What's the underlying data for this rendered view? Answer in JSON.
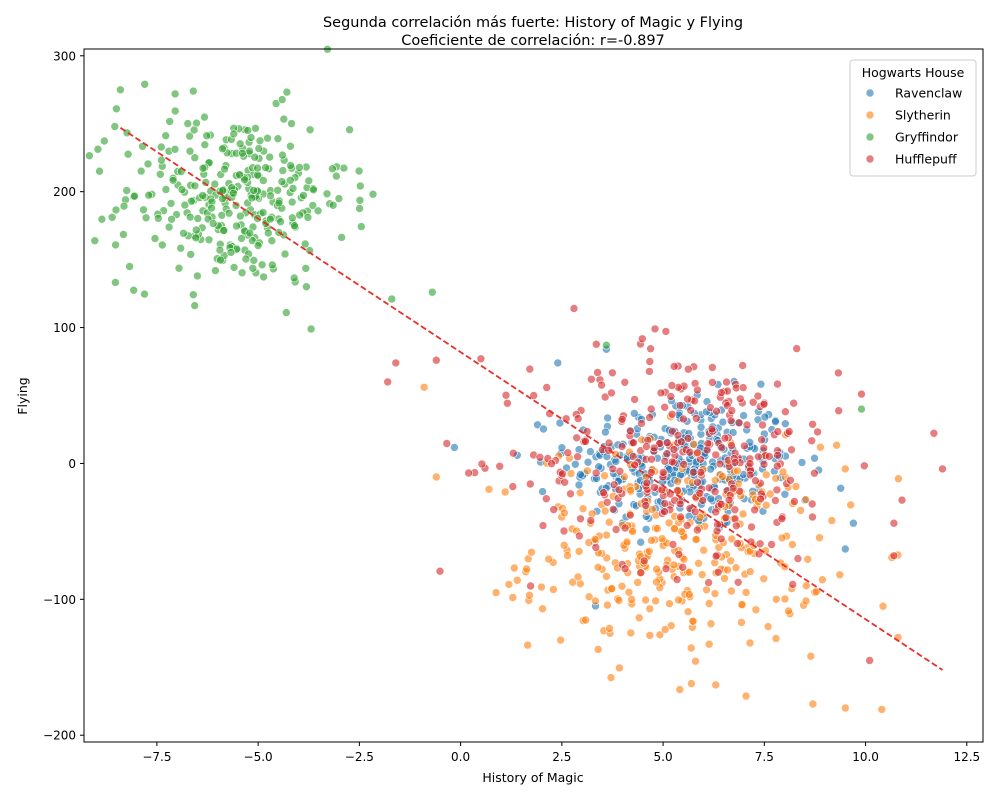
{
  "chart_data": {
    "type": "scatter",
    "title": "Segunda correlación más fuerte: History of Magic y Flying",
    "subtitle": "Coeficiente de correlación: r=-0.897",
    "xlabel": "History of Magic",
    "ylabel": "Flying",
    "xlim": [
      -9.3,
      12.9
    ],
    "ylim": [
      -205,
      305
    ],
    "xticks": [
      -7.5,
      -5.0,
      -2.5,
      0.0,
      2.5,
      5.0,
      7.5,
      10.0,
      12.5
    ],
    "xtick_labels": [
      "−7.5",
      "−5.0",
      "−2.5",
      "0.0",
      "2.5",
      "5.0",
      "7.5",
      "10.0",
      "12.5"
    ],
    "yticks": [
      -200,
      -100,
      0,
      100,
      200,
      300
    ],
    "ytick_labels": [
      "−200",
      "−100",
      "0",
      "100",
      "200",
      "300"
    ],
    "grid": false,
    "legend": {
      "title": "Hogwarts House",
      "placement": "top-right"
    },
    "series": [
      {
        "name": "Ravenclaw",
        "color": "#1f77b4",
        "center": [
          5.5,
          0
        ],
        "spread": [
          1.4,
          25
        ],
        "count": 320,
        "extra_points": [
          [
            2.4,
            74
          ],
          [
            3.6,
            84
          ],
          [
            9.7,
            -44
          ],
          [
            9.5,
            -63
          ],
          [
            1.4,
            6
          ],
          [
            8.5,
            -27
          ]
        ]
      },
      {
        "name": "Slytherin",
        "color": "#ff7f0e",
        "center": [
          5.4,
          -62
        ],
        "spread": [
          1.8,
          38
        ],
        "count": 320,
        "extra_points": [
          [
            -0.9,
            56
          ],
          [
            -0.6,
            -10
          ],
          [
            0.7,
            -19
          ],
          [
            1.1,
            -21
          ],
          [
            10.4,
            -181
          ],
          [
            9.5,
            -180
          ],
          [
            8.7,
            -177
          ],
          [
            10.8,
            -128
          ],
          [
            9.5,
            -4
          ],
          [
            5.7,
            -162
          ],
          [
            6.3,
            -163
          ],
          [
            1.4,
            -86
          ],
          [
            1.7,
            -97
          ]
        ]
      },
      {
        "name": "Gryffindor",
        "color": "#2ca02c",
        "center": [
          -5.6,
          195
        ],
        "spread": [
          1.4,
          32
        ],
        "count": 320,
        "extra_points": [
          [
            -8.4,
            275
          ],
          [
            -7.8,
            279
          ],
          [
            -6.6,
            274
          ],
          [
            -0.7,
            126
          ],
          [
            -1.7,
            121
          ],
          [
            9.9,
            40
          ],
          [
            3.6,
            87
          ],
          [
            -6.5,
            138
          ],
          [
            -8.5,
            261
          ]
        ]
      },
      {
        "name": "Hufflepuff",
        "color": "#d62728",
        "center": [
          5.6,
          5
        ],
        "spread": [
          1.9,
          40
        ],
        "count": 320,
        "extra_points": [
          [
            11.9,
            -4
          ],
          [
            10.1,
            -145
          ],
          [
            10.9,
            -27
          ],
          [
            -1.6,
            74
          ],
          [
            -1.8,
            60
          ],
          [
            -0.6,
            76
          ],
          [
            2.8,
            114
          ],
          [
            4.8,
            99
          ],
          [
            0.5,
            77
          ],
          [
            0.2,
            -7
          ],
          [
            10.7,
            -44
          ],
          [
            10.7,
            -68
          ],
          [
            9.9,
            51
          ],
          [
            8.2,
            -89
          ]
        ]
      }
    ],
    "regression_line": {
      "color": "#e8302a",
      "style": "dashed",
      "x": [
        -8.4,
        11.9
      ],
      "y": [
        247,
        -152
      ]
    }
  }
}
